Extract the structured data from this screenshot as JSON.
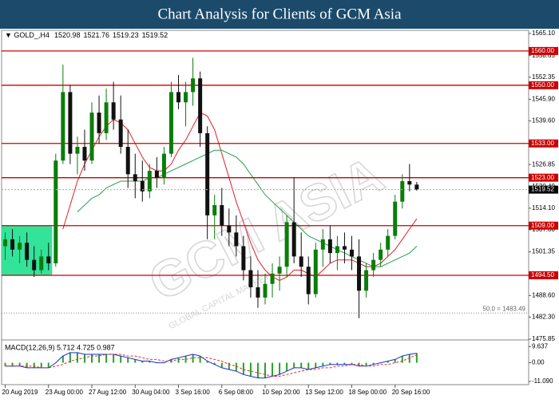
{
  "chart_data": {
    "type": "candlestick",
    "title": "Chart Analysis for Clients of GCM Asia",
    "symbol": "GOLD_,H4",
    "xlim": [
      -0.5,
      72.5
    ],
    "xticks": [
      {
        "value": 0,
        "label": "20 Aug 2019"
      },
      {
        "value": 6,
        "label": "23 Aug 00:00"
      },
      {
        "value": 12,
        "label": "27 Aug 12:00"
      },
      {
        "value": 18,
        "label": "30 Aug 04:00"
      },
      {
        "value": 24,
        "label": "3 Sep 16:00"
      },
      {
        "value": 30,
        "label": "6 Sep 08:00"
      },
      {
        "value": 36,
        "label": "10 Sep 20:00"
      },
      {
        "value": 42,
        "label": "13 Sep 12:00"
      },
      {
        "value": 48,
        "label": "18 Sep 00:00"
      },
      {
        "value": 54,
        "label": "20 Sep 16:00"
      }
    ],
    "ylim": [
      1475.85,
      1565.1
    ],
    "yticks": [
      {
        "value": 1565.1,
        "label": "1565.10"
      },
      1558.65,
      1552.35,
      {
        "value": 1545.9,
        "label": "1545.90"
      },
      {
        "value": 1539.6,
        "label": "1539.60"
      },
      1526.85,
      {
        "value": 1520.4,
        "label": "1520.40"
      },
      {
        "value": 1514.1,
        "label": "1514.10"
      },
      {
        "value": 1507.8,
        "label": "1507.80"
      },
      1501.35,
      {
        "value": 1488.6,
        "label": "1488.60"
      },
      {
        "value": 1482.3,
        "label": "1482.30"
      },
      1475.85
    ],
    "open": [
      1503,
      1505,
      1502,
      1504,
      1499,
      1496,
      1500,
      1498,
      1528,
      1548,
      1530,
      1532,
      1528,
      1542,
      1536,
      1545,
      1540,
      1532,
      1524,
      1522,
      1519,
      1525,
      1523,
      1530,
      1548,
      1545,
      1548,
      1552,
      1536,
      1512,
      1515,
      1509,
      1507,
      1503,
      1496,
      1491,
      1488,
      1492,
      1495,
      1497,
      1510,
      1500,
      1497,
      1489,
      1502,
      1505,
      1501,
      1503,
      1502,
      1500,
      1490,
      1496,
      1499,
      1502,
      1506,
      1516,
      1522,
      1520.98
    ],
    "high": [
      1507,
      1508,
      1506,
      1507,
      1503,
      1502,
      1504,
      1530,
      1556,
      1550,
      1535,
      1537,
      1545,
      1547,
      1549,
      1551,
      1547,
      1537,
      1530,
      1528,
      1527,
      1529,
      1532,
      1551,
      1553,
      1551,
      1558,
      1554,
      1538,
      1518,
      1520,
      1514,
      1512,
      1506,
      1500,
      1496,
      1495,
      1498,
      1500,
      1512,
      1523,
      1507,
      1500,
      1504,
      1508,
      1509,
      1506,
      1507,
      1506,
      1505,
      1498,
      1501,
      1504,
      1508,
      1518,
      1524,
      1527,
      1521.76
    ],
    "low": [
      1499,
      1500,
      1498,
      1497,
      1494,
      1495,
      1496,
      1497,
      1527,
      1527,
      1524,
      1525,
      1527,
      1533,
      1534,
      1537,
      1530,
      1520,
      1517,
      1516,
      1517,
      1520,
      1521,
      1529,
      1543,
      1538,
      1544,
      1532,
      1505,
      1505,
      1506,
      1503,
      1500,
      1493,
      1488,
      1485,
      1486,
      1488,
      1490,
      1494,
      1498,
      1494,
      1486,
      1488,
      1497,
      1498,
      1496,
      1498,
      1496,
      1482,
      1488,
      1494,
      1497,
      1500,
      1505,
      1514,
      1519,
      1519.23
    ],
    "close": [
      1505,
      1502,
      1504,
      1499,
      1496,
      1500,
      1498,
      1528,
      1548,
      1530,
      1532,
      1528,
      1542,
      1536,
      1545,
      1540,
      1532,
      1524,
      1522,
      1519,
      1525,
      1523,
      1530,
      1548,
      1545,
      1548,
      1552,
      1536,
      1512,
      1515,
      1509,
      1507,
      1503,
      1496,
      1491,
      1488,
      1492,
      1495,
      1497,
      1510,
      1500,
      1497,
      1489,
      1502,
      1505,
      1501,
      1503,
      1502,
      1500,
      1490,
      1496,
      1499,
      1502,
      1506,
      1516,
      1522,
      1521,
      1519.52
    ],
    "up_color": "#0a7d0a",
    "down_color": "#111111",
    "lines": [
      {
        "color": "#e0202a",
        "values": [
          null,
          null,
          null,
          null,
          null,
          null,
          null,
          null,
          1508,
          1515,
          1522,
          1527,
          1531,
          1535,
          1538,
          1540,
          1539,
          1537,
          1533,
          1529,
          1526,
          1525,
          1525,
          1527,
          1531,
          1534,
          1538,
          1542,
          1541,
          1537,
          1530,
          1523,
          1516,
          1510,
          1504,
          1499,
          1496,
          1494,
          1493,
          1494,
          1496,
          1496,
          1495,
          1494,
          1496,
          1498,
          1499,
          1499,
          1499,
          1498,
          1497,
          1497,
          1498,
          1500,
          1502,
          1505,
          1508,
          1511
        ]
      },
      {
        "color": "#22a050",
        "values": [
          null,
          null,
          null,
          null,
          null,
          null,
          null,
          null,
          null,
          null,
          1513,
          1515,
          1517,
          1518,
          1520,
          1521,
          1522,
          1522,
          1522,
          1522,
          1523,
          1523,
          1524,
          1525,
          1526,
          1527,
          1528,
          1529,
          1530,
          1531,
          1531,
          1530,
          1529,
          1527,
          1524,
          1521,
          1518,
          1516,
          1514,
          1512,
          1510,
          1508,
          1506,
          1505,
          1504,
          1503,
          1502,
          1501,
          1500,
          1499,
          1498,
          1497,
          1497,
          1498,
          1499,
          1500,
          1501,
          1503
        ]
      }
    ],
    "levels": [
      {
        "value": 1560,
        "label": "1560.00"
      },
      {
        "value": 1550,
        "label": "1550.00"
      },
      {
        "value": 1533,
        "label": "1533.00"
      },
      {
        "value": 1523,
        "label": "1523.00"
      },
      {
        "value": 1509,
        "label": "1509.00"
      },
      {
        "value": 1494.5,
        "label": "1494.50"
      }
    ],
    "level_color": "#cc0000",
    "midline": {
      "value": 1483.49,
      "label": "50.0 = 1483.49"
    },
    "zone": {
      "x0": 0,
      "x1": 7,
      "y0": 1494.5,
      "y1": 1509,
      "color": "#33e39a"
    },
    "watermark": "GCM ASIA",
    "watermark_sub": "GLOBAL CAPITAL MARKETS",
    "macd": {
      "label": "MACD(12,26,9) 5.712 4.725 0.987",
      "ylim": [
        -13,
        12.6
      ],
      "yticks": [
        9.637,
        {
          "value": 0,
          "label": "0.00"
        },
        {
          "value": -11.09,
          "label": "-11.090"
        }
      ],
      "histogram": {
        "color": "#2aa02a",
        "line_color": "#1a2fd0",
        "values": [
          -2,
          -2,
          -2,
          -3,
          -3,
          -3,
          -3,
          0,
          4,
          6,
          6,
          5,
          5,
          5,
          5,
          5,
          4,
          3,
          2,
          1,
          1,
          0,
          0,
          2,
          3,
          4,
          5,
          4,
          1,
          -1,
          -3,
          -4,
          -5,
          -7,
          -8,
          -9,
          -9,
          -8,
          -7,
          -5,
          -3,
          -3,
          -4,
          -3,
          -2,
          -1,
          -1,
          -1,
          -1,
          -2,
          -2,
          -1,
          0,
          1,
          2,
          4,
          5,
          5.7
        ]
      },
      "signal": {
        "color": "#e03030",
        "values": [
          -2,
          -2,
          -2,
          -2,
          -2,
          -3,
          -3,
          -2,
          -1,
          1,
          2,
          3,
          4,
          4,
          5,
          5,
          5,
          4,
          4,
          3,
          2,
          2,
          1,
          1,
          2,
          2,
          3,
          3,
          3,
          2,
          1,
          -1,
          -2,
          -4,
          -5,
          -6,
          -7,
          -8,
          -8,
          -7,
          -6,
          -5,
          -4,
          -4,
          -3,
          -3,
          -2,
          -2,
          -1,
          -1,
          -2,
          -2,
          -1,
          -1,
          0,
          1,
          3,
          4.7
        ]
      }
    }
  }
}
